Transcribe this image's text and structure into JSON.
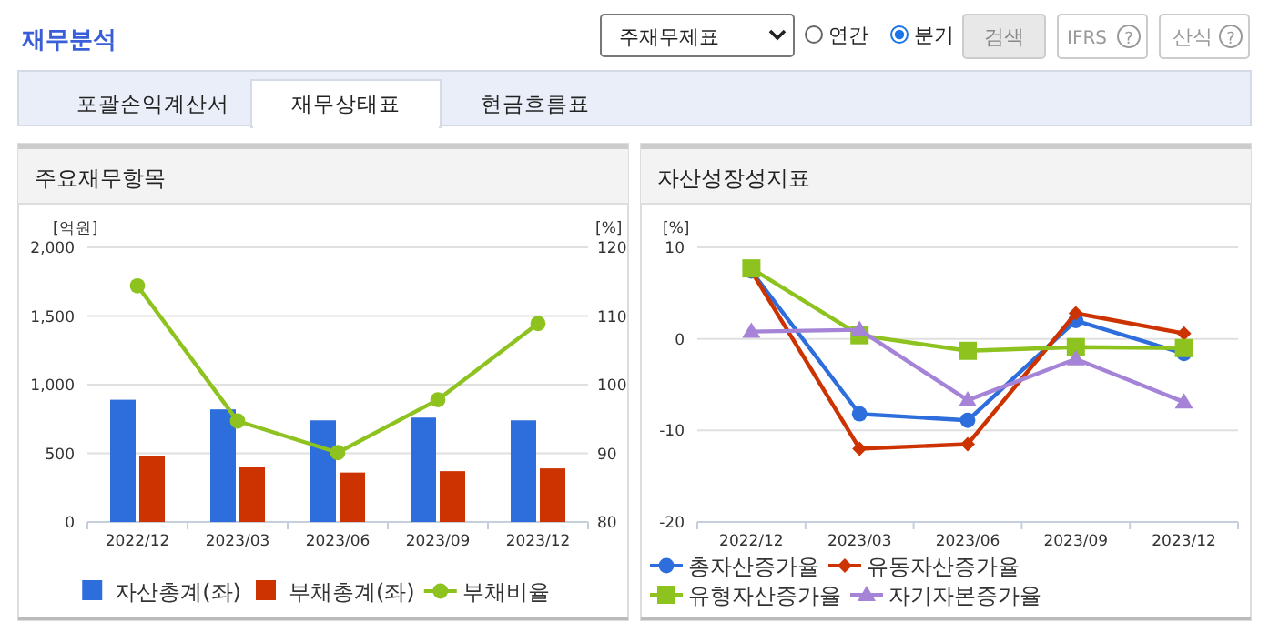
{
  "chart_data": [
    {
      "type": "other",
      "annotations": [
        "재무분석",
        "주재무제표",
        "연간",
        "분기",
        "검색",
        "IFRS",
        "?",
        "산식",
        "?",
        "포괄손익계산서",
        "재무상태표",
        "현금흐름표"
      ]
    },
    {
      "type": "bar",
      "title": "주요재무항목",
      "ylabel": "[억원]",
      "y2label": "[%]",
      "categories": [
        "2022/12",
        "2023/03",
        "2023/06",
        "2023/09",
        "2023/12"
      ],
      "series": [
        {
          "name": "자산총계(좌)",
          "color": "#2e6edc",
          "values": [
            890,
            820,
            740,
            760,
            740
          ]
        },
        {
          "name": "부채총계(좌)",
          "color": "#cc3300",
          "values": [
            480,
            400,
            360,
            370,
            390
          ]
        },
        {
          "name": "부채비율",
          "type": "line",
          "axis": "y2",
          "marker": "circle",
          "color": "#8dc21f",
          "values": [
            114.4,
            94.7,
            90.1,
            97.8,
            108.9
          ]
        }
      ],
      "ylim": [
        0,
        2000
      ],
      "yticks": [
        0,
        500,
        {
          "value": 1000,
          "label": "1,000"
        },
        {
          "value": 1500,
          "label": "1,500"
        },
        {
          "value": 2000,
          "label": "2,000"
        }
      ],
      "y2lim": [
        80,
        120
      ],
      "y2ticks": [
        80,
        90,
        100,
        110,
        120
      ],
      "grid": "y",
      "legend": "bottom"
    },
    {
      "type": "line",
      "title": "자산성장성지표",
      "ylabel": "[%]",
      "categories": [
        "2022/12",
        "2023/03",
        "2023/06",
        "2023/09",
        "2023/12"
      ],
      "series": [
        {
          "name": "총자산증가율",
          "marker": "circle",
          "color": "#2e6edc",
          "values": [
            7.4,
            -8.2,
            -8.9,
            2.0,
            -1.6
          ]
        },
        {
          "name": "유동자산증가율",
          "marker": "diamond",
          "color": "#cc3300",
          "values": [
            7.4,
            -12.0,
            -11.5,
            2.8,
            0.6
          ]
        },
        {
          "name": "유형자산증가율",
          "marker": "square",
          "color": "#8dc21f",
          "values": [
            7.7,
            0.4,
            -1.3,
            -0.9,
            -1.0
          ]
        },
        {
          "name": "자기자본증가율",
          "marker": "triangle",
          "color": "#a584d8",
          "values": [
            0.8,
            1.0,
            -6.7,
            -2.2,
            -6.9
          ]
        }
      ],
      "ylim": [
        -20,
        10
      ],
      "yticks": [
        -20,
        -10,
        0,
        10
      ],
      "grid": "y",
      "legend": "bottom"
    }
  ]
}
